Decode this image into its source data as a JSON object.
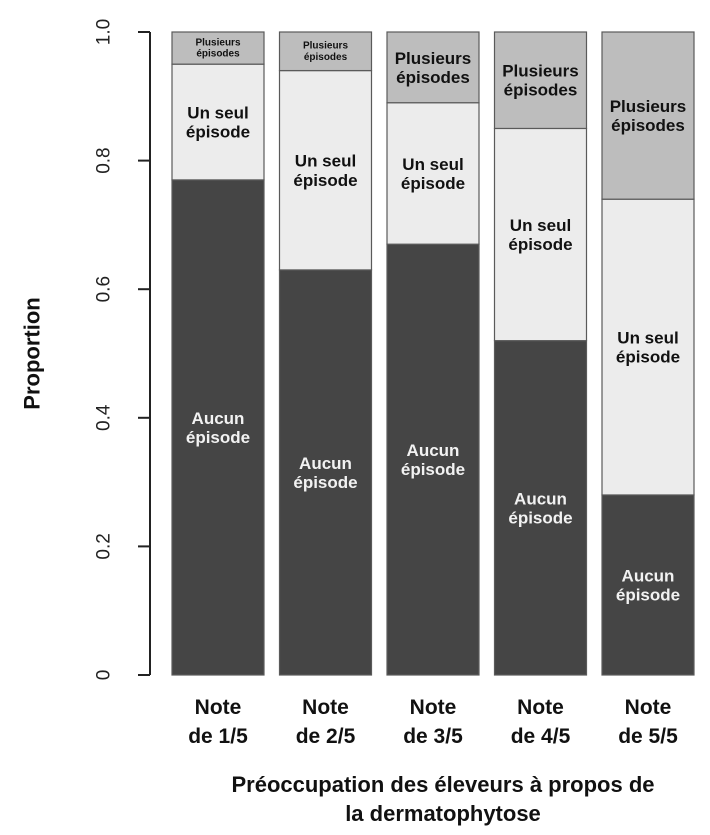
{
  "chart_data": {
    "type": "bar",
    "stacked": true,
    "ylabel": "Proportion",
    "xlabel": [
      "Préoccupation des éleveurs à propos de",
      "la dermatophytose"
    ],
    "ylim": [
      0,
      1
    ],
    "yticks": [
      "0",
      "0.2",
      "0.4",
      "0.6",
      "0.8",
      "1.0"
    ],
    "categories": [
      [
        "Note",
        "de 1/5"
      ],
      [
        "Note",
        "de 2/5"
      ],
      [
        "Note",
        "de 3/5"
      ],
      [
        "Note",
        "de 4/5"
      ],
      [
        "Note",
        "de 5/5"
      ]
    ],
    "series": [
      {
        "name": [
          "Aucun",
          "épisode"
        ],
        "color": "#454545",
        "text_color": "#f2f2f2",
        "values": [
          0.77,
          0.63,
          0.67,
          0.52,
          0.28
        ]
      },
      {
        "name": [
          "Un seul",
          "épisode"
        ],
        "color": "#ececec",
        "text_color": "#111111",
        "values": [
          0.18,
          0.31,
          0.22,
          0.33,
          0.46
        ]
      },
      {
        "name": [
          "Plusieurs",
          "épisodes"
        ],
        "color": "#bdbdbd",
        "text_color": "#111111",
        "values": [
          0.05,
          0.06,
          0.11,
          0.15,
          0.26
        ]
      }
    ],
    "grid": false,
    "legend": "none"
  }
}
